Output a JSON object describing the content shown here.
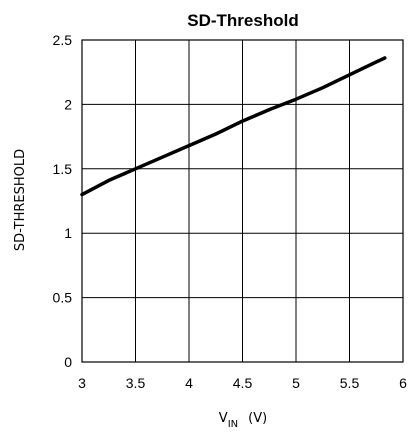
{
  "chart_data": {
    "type": "line",
    "title": "SD-Threshold",
    "ylabel": "SD-THRESHOLD",
    "xlabel": {
      "main": "V",
      "subscript": "IN",
      "unit": "(V)"
    },
    "xlim": [
      3,
      6
    ],
    "ylim": [
      0,
      2.5
    ],
    "xticks": [
      "3",
      "3.5",
      "4",
      "4.5",
      "5",
      "5.5",
      "6"
    ],
    "yticks": [
      "0",
      "0.5",
      "1",
      "1.5",
      "2",
      "2.5"
    ],
    "grid": true,
    "series": [
      {
        "x": [
          3.0,
          3.25,
          3.5,
          3.75,
          4.0,
          4.25,
          4.5,
          4.75,
          5.0,
          5.25,
          5.5,
          5.75,
          5.83
        ],
        "y": [
          1.3,
          1.41,
          1.5,
          1.59,
          1.68,
          1.77,
          1.87,
          1.96,
          2.04,
          2.13,
          2.23,
          2.33,
          2.36
        ]
      }
    ]
  }
}
